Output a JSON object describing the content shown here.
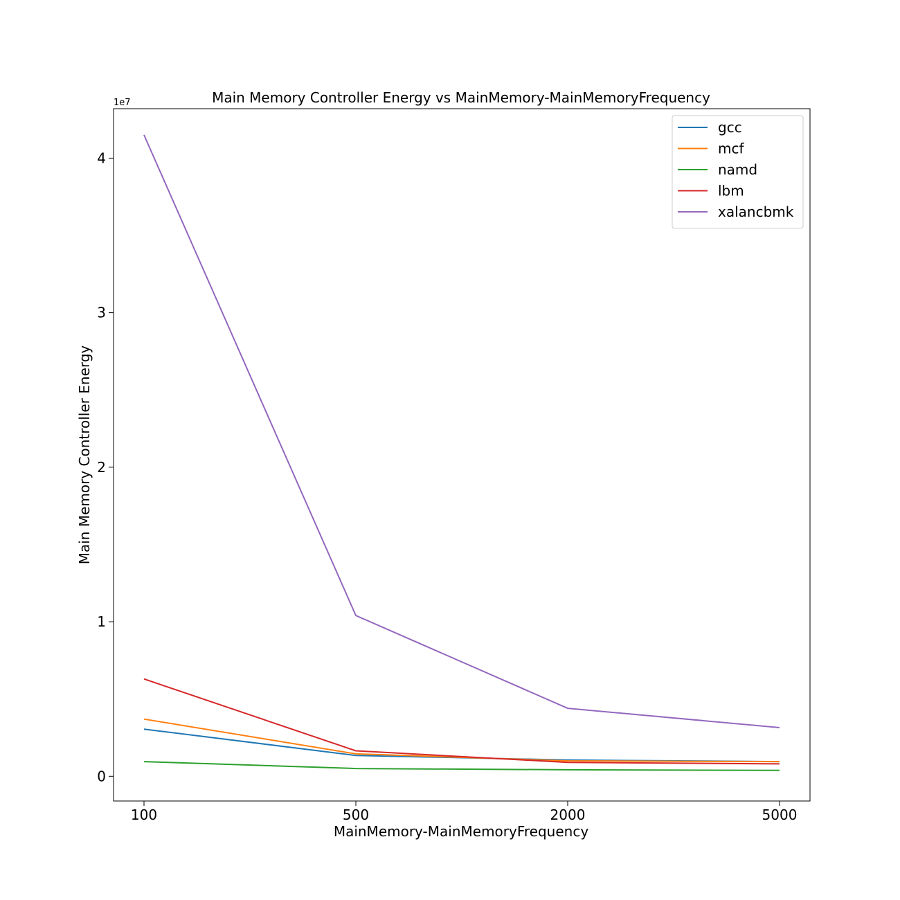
{
  "chart_data": {
    "type": "line",
    "title": "Main Memory Controller Energy vs MainMemory-MainMemoryFrequency",
    "xlabel": "MainMemory-MainMemoryFrequency",
    "ylabel": "Main Memory Controller Energy",
    "y_multiplier_label": "1e7",
    "x_categories": [
      "100",
      "500",
      "2000",
      "5000"
    ],
    "x_scale": "categorical",
    "ylim": [
      -1600000,
      43200000
    ],
    "y_ticks": [
      0,
      10000000,
      20000000,
      30000000,
      40000000
    ],
    "y_tick_labels": [
      "0",
      "1",
      "2",
      "3",
      "4"
    ],
    "grid": false,
    "legend_position": "top-right",
    "series": [
      {
        "name": "gcc",
        "color": "#1f77b4",
        "values": [
          3050000,
          1350000,
          1050000,
          950000
        ]
      },
      {
        "name": "mcf",
        "color": "#ff7f0e",
        "values": [
          3700000,
          1450000,
          1000000,
          950000
        ]
      },
      {
        "name": "namd",
        "color": "#2ca02c",
        "values": [
          950000,
          500000,
          420000,
          380000
        ]
      },
      {
        "name": "lbm",
        "color": "#d62728",
        "values": [
          6300000,
          1650000,
          900000,
          800000
        ]
      },
      {
        "name": "xalancbmk",
        "color": "#9467bd",
        "values": [
          41500000,
          10400000,
          4400000,
          3150000
        ]
      }
    ]
  }
}
